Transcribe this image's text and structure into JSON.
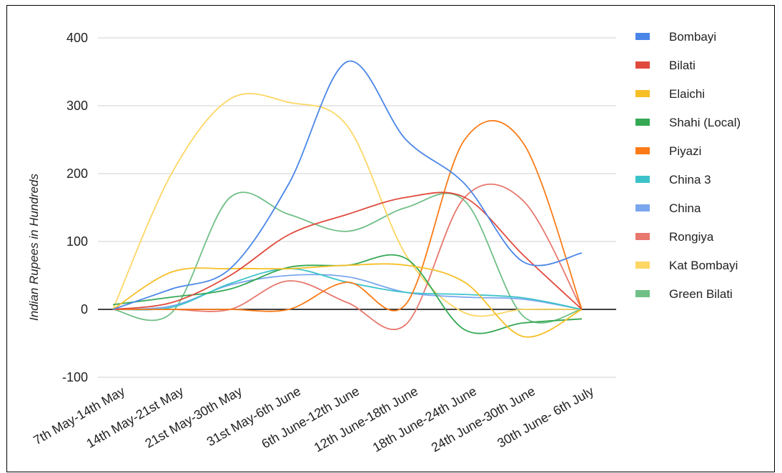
{
  "chart_data": {
    "type": "line",
    "title": "",
    "xlabel": "",
    "ylabel": "Indian Rupees in Hundreds",
    "ylim": [
      -100,
      400
    ],
    "yticks": [
      -100,
      0,
      100,
      200,
      300,
      400
    ],
    "grid": true,
    "legend_position": "right",
    "categories": [
      "7th May-14th May",
      "14th May-21st May",
      "21st May-30th May",
      "31st May-6th June",
      "6th June-12th June",
      "12th June-18th June",
      "18th June-24th June",
      "24th June-30th June",
      "30th June- 6th July"
    ],
    "series": [
      {
        "name": "Bombayi",
        "color": "#4a86e8",
        "values": [
          0,
          30,
          60,
          185,
          365,
          250,
          185,
          70,
          83
        ]
      },
      {
        "name": "Bilati",
        "color": "#e04a3c",
        "values": [
          0,
          10,
          50,
          110,
          140,
          165,
          165,
          80,
          0
        ]
      },
      {
        "name": "Elaichi",
        "color": "#f6bf26",
        "values": [
          0,
          55,
          60,
          60,
          65,
          65,
          40,
          -40,
          0
        ]
      },
      {
        "name": "Shahi (Local)",
        "color": "#34a853",
        "values": [
          7,
          18,
          30,
          62,
          65,
          75,
          -30,
          -20,
          -14
        ]
      },
      {
        "name": "Piyazi",
        "color": "#fa7b17",
        "values": [
          0,
          0,
          0,
          0,
          40,
          8,
          250,
          245,
          0
        ]
      },
      {
        "name": "China 3",
        "color": "#3cc3c9",
        "values": [
          0,
          3,
          38,
          60,
          40,
          25,
          22,
          17,
          0
        ]
      },
      {
        "name": "China",
        "color": "#7aa6ee",
        "values": [
          0,
          5,
          36,
          50,
          48,
          25,
          18,
          15,
          0
        ]
      },
      {
        "name": "Rongiya",
        "color": "#e8776d",
        "values": [
          0,
          0,
          0,
          42,
          10,
          -22,
          165,
          160,
          0
        ]
      },
      {
        "name": "Kat Bombayi",
        "color": "#fdd663",
        "values": [
          0,
          200,
          310,
          305,
          270,
          80,
          -5,
          0,
          0
        ]
      },
      {
        "name": "Green Bilati",
        "color": "#6fbf86",
        "values": [
          0,
          -5,
          165,
          140,
          115,
          150,
          160,
          -10,
          0
        ]
      }
    ]
  }
}
